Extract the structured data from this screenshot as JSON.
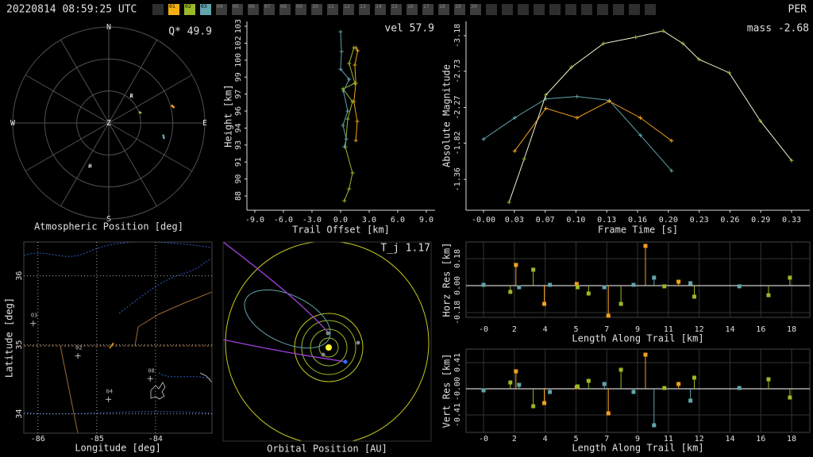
{
  "header": {
    "timestamp": "20220814 08:59:25 UTC",
    "code": "PER",
    "stations": [
      {
        "label": "01",
        "color": "#f5b010"
      },
      {
        "label": "02",
        "color": "#9ab828"
      },
      {
        "label": "03",
        "color": "#62a4ac"
      },
      {
        "label": "04"
      },
      {
        "label": "05"
      },
      {
        "label": "06"
      },
      {
        "label": "07"
      },
      {
        "label": "08"
      },
      {
        "label": "09"
      },
      {
        "label": "10"
      },
      {
        "label": "11"
      },
      {
        "label": "12"
      },
      {
        "label": "13"
      },
      {
        "label": "14"
      },
      {
        "label": "15"
      },
      {
        "label": "16"
      },
      {
        "label": "17"
      },
      {
        "label": "18"
      },
      {
        "label": "19"
      },
      {
        "label": "20"
      }
    ]
  },
  "chart_data": [
    {
      "type": "polar",
      "title": "Atmospheric Position [deg]",
      "annotation": "Q* 49.9",
      "directions": [
        "N",
        "E",
        "S",
        "W"
      ],
      "zenith_label": "Z",
      "rlim": [
        0,
        90
      ],
      "series": [
        {
          "color": "#f0a020",
          "azimuth": [
            74,
            77
          ],
          "zenith": [
            61,
            63
          ]
        },
        {
          "color": "#9ab828",
          "azimuth": [
            70,
            73
          ],
          "zenith": [
            30,
            32
          ]
        },
        {
          "color": "#62a4ac",
          "azimuth": [
            102,
            106
          ],
          "zenith": [
            52,
            54
          ]
        }
      ],
      "markers": [
        {
          "label": "R",
          "azimuth": 40,
          "zenith": 32
        },
        {
          "label": "H",
          "azimuth": 204,
          "zenith": 45
        }
      ]
    },
    {
      "type": "line",
      "xlabel": "Trail Offset [km]",
      "ylabel": "Height [km]",
      "annotation": "vel 57.9",
      "xlim": [
        -9.83,
        9.92
      ],
      "ylim": [
        86.72,
        103.63
      ],
      "xticks": [
        {
          "value": -9,
          "label": "-9.0"
        },
        {
          "value": -6,
          "label": "-6.0"
        },
        {
          "value": -3,
          "label": "-3.0"
        },
        {
          "value": 0,
          "label": "0.0"
        },
        {
          "value": 3,
          "label": "3.0"
        },
        {
          "value": 6,
          "label": "6.0"
        },
        {
          "value": 9,
          "label": "9.0"
        }
      ],
      "yticks": [
        88,
        {
          "value": 89.52,
          "label": "90"
        },
        {
          "value": 91.04,
          "label": "91"
        },
        {
          "value": 92.56,
          "label": "93"
        },
        {
          "value": 94.08,
          "label": "94"
        },
        {
          "value": 95.6,
          "label": "96"
        },
        {
          "value": 97.12,
          "label": "97"
        },
        {
          "value": 98.64,
          "label": "99"
        },
        {
          "value": 100.16,
          "label": "100"
        },
        {
          "value": 101.68,
          "label": "102"
        },
        {
          "value": 103.2,
          "label": "103"
        }
      ],
      "series": [
        {
          "color": "#f0a020",
          "marker": "+",
          "x": [
            1.6,
            1.8,
            1.5,
            1.6,
            1.4,
            1.75,
            1.6
          ],
          "y": [
            101.28,
            101.0,
            99.72,
            98.09,
            96.45,
            94.68,
            92.97
          ]
        },
        {
          "color": "#9ab828",
          "marker": "+",
          "x": [
            1.4,
            0.9,
            1.5,
            0.25,
            1.25,
            0.75,
            0.5,
            1.25,
            0.9,
            0.4
          ],
          "y": [
            101.28,
            99.86,
            98.09,
            97.59,
            96.45,
            94.89,
            92.4,
            90.06,
            88.64,
            87.57
          ]
        },
        {
          "color": "#62a4ac",
          "marker": "+",
          "x": [
            0,
            0.1,
            0,
            0.9,
            0.3,
            0.75,
            0.25,
            0.6,
            0.4
          ],
          "y": [
            102.7,
            100.93,
            99.36,
            98.44,
            97.38,
            95.6,
            94.32,
            93.11,
            92.4
          ]
        }
      ]
    },
    {
      "type": "line",
      "xlabel": "Frame Time [s]",
      "ylabel": "Absolute Magnitude",
      "annotation": "mass -2.68",
      "xlim": [
        -0.0185,
        0.3453
      ],
      "ylim": [
        -0.97,
        -3.36
      ],
      "xticks": [
        {
          "value": 0,
          "label": "-0.00"
        },
        {
          "value": 0.0326,
          "label": "0.03"
        },
        {
          "value": 0.0652,
          "label": "0.07"
        },
        {
          "value": 0.0978,
          "label": "0.10"
        },
        {
          "value": 0.1304,
          "label": "0.13"
        },
        {
          "value": 0.163,
          "label": "0.16"
        },
        {
          "value": 0.1956,
          "label": "0.20"
        },
        {
          "value": 0.2282,
          "label": "0.23"
        },
        {
          "value": 0.2608,
          "label": "0.26"
        },
        {
          "value": 0.2934,
          "label": "0.29"
        },
        {
          "value": 0.326,
          "label": "0.33"
        }
      ],
      "yticks": [
        -3.18,
        -2.73,
        -2.27,
        -1.82,
        -1.36
      ],
      "series": [
        {
          "color": "#62a4ac",
          "marker": "+",
          "x": [
            0,
            0.033,
            0.066,
            0.099,
            0.133,
            0.166,
            0.199
          ],
          "y": [
            -1.87,
            -2.14,
            -2.38,
            -2.41,
            -2.36,
            -1.92,
            -1.47
          ]
        },
        {
          "color": "#f0a020",
          "marker": "+",
          "x": [
            0.033,
            0.066,
            0.099,
            0.133,
            0.166,
            0.199
          ],
          "y": [
            -1.72,
            -2.26,
            -2.14,
            -2.35,
            -2.14,
            -1.85
          ]
        },
        {
          "color": "#f4f4d0",
          "marker": "+",
          "marker_color": "#9ab828",
          "x": [
            0.027,
            0.043,
            0.066,
            0.093,
            0.127,
            0.161,
            0.19,
            0.211,
            0.228,
            0.26,
            0.293,
            0.326
          ],
          "y": [
            -1.07,
            -1.62,
            -2.43,
            -2.78,
            -3.08,
            -3.16,
            -3.24,
            -3.08,
            -2.88,
            -2.71,
            -2.1,
            -1.6
          ]
        }
      ]
    },
    {
      "type": "map",
      "xlabel": "Longitude [deg]",
      "ylabel": "Latitude [deg]",
      "grid": true,
      "xlim": [
        -86.24,
        -83.04
      ],
      "ylim": [
        33.72,
        36.49
      ],
      "xticks": [
        -86,
        -85,
        -84
      ],
      "yticks": [
        34,
        35,
        36
      ],
      "points": [
        {
          "label": "03",
          "lon": -86.08,
          "lat": 35.31
        },
        {
          "label": "02",
          "lon": -85.32,
          "lat": 34.84
        },
        {
          "label": "04",
          "lon": -84.8,
          "lat": 34.21
        },
        {
          "label": "08",
          "lon": -84.09,
          "lat": 34.51
        }
      ]
    },
    {
      "type": "orbit",
      "title": "Orbital Position [AU]",
      "annotation": "T_j 1.17"
    },
    {
      "type": "stem",
      "xlabel": "Length Along Trail [km]",
      "ylabel": "Horz Res [km]",
      "grid": true,
      "xlim": [
        -1.0,
        18.64
      ],
      "ylim": [
        -0.212,
        0.291
      ],
      "xticks": [
        {
          "value": 0,
          "label": "-0"
        },
        {
          "value": 1.76,
          "label": "2"
        },
        {
          "value": 3.52,
          "label": "4"
        },
        {
          "value": 5.28,
          "label": "5"
        },
        {
          "value": 7.04,
          "label": "7"
        },
        {
          "value": 8.8,
          "label": "9"
        },
        {
          "value": 10.56,
          "label": "11"
        },
        {
          "value": 12.32,
          "label": "12"
        },
        {
          "value": 14.08,
          "label": "14"
        },
        {
          "value": 15.84,
          "label": "16"
        },
        {
          "value": 17.6,
          "label": "18"
        }
      ],
      "yticks": [
        -0.18,
        {
          "value": 0,
          "label": "0.00"
        },
        0.18
      ],
      "series": [
        {
          "color": "#f0a020",
          "x": [
            1.85,
            3.47,
            5.32,
            7.13,
            9.25,
            11.14
          ],
          "y": [
            0.138,
            -0.122,
            0.011,
            -0.201,
            0.265,
            0.026
          ]
        },
        {
          "color": "#9ab828",
          "x": [
            1.53,
            2.84,
            5.37,
            6.0,
            7.85,
            10.33,
            12.04,
            16.28,
            17.5
          ],
          "y": [
            -0.042,
            0.106,
            -0.011,
            -0.053,
            -0.122,
            -0.005,
            -0.074,
            -0.064,
            0.053
          ]
        },
        {
          "color": "#62a4ac",
          "x": [
            0,
            2.03,
            3.79,
            6.9,
            8.57,
            9.74,
            11.82,
            14.61
          ],
          "y": [
            0.005,
            -0.011,
            0.005,
            -0.011,
            0.005,
            0.053,
            0.016,
            -0.005
          ]
        }
      ]
    },
    {
      "type": "stem",
      "xlabel": "Length Along Trail [km]",
      "ylabel": "Vert Res [km]",
      "grid": true,
      "xlim": [
        -1.0,
        18.64
      ],
      "ylim": [
        -0.683,
        0.621
      ],
      "xticks": [
        {
          "value": 0,
          "label": "-0"
        },
        {
          "value": 1.76,
          "label": "2"
        },
        {
          "value": 3.52,
          "label": "4"
        },
        {
          "value": 5.28,
          "label": "5"
        },
        {
          "value": 7.04,
          "label": "7"
        },
        {
          "value": 8.8,
          "label": "9"
        },
        {
          "value": 10.56,
          "label": "11"
        },
        {
          "value": 12.32,
          "label": "12"
        },
        {
          "value": 14.08,
          "label": "14"
        },
        {
          "value": 15.84,
          "label": "16"
        },
        {
          "value": 17.6,
          "label": "18"
        }
      ],
      "yticks": [
        -0.41,
        {
          "value": 0,
          "label": "-0.00"
        },
        0.41
      ],
      "series": [
        {
          "color": "#f0a020",
          "x": [
            1.85,
            3.47,
            5.32,
            7.13,
            9.25,
            11.14
          ],
          "y": [
            0.273,
            -0.224,
            0.025,
            -0.385,
            0.534,
            0.075
          ]
        },
        {
          "color": "#9ab828",
          "x": [
            1.53,
            2.84,
            5.37,
            6.0,
            7.85,
            10.33,
            12.04,
            16.28,
            17.5
          ],
          "y": [
            0.099,
            -0.273,
            0.037,
            0.124,
            0.298,
            0.012,
            0.174,
            0.149,
            -0.137
          ]
        },
        {
          "color": "#62a4ac",
          "x": [
            0,
            2.03,
            3.79,
            6.9,
            8.57,
            9.74,
            11.82,
            14.61
          ],
          "y": [
            -0.025,
            0.062,
            -0.05,
            0.075,
            -0.05,
            -0.571,
            -0.186,
            0.012
          ]
        }
      ]
    }
  ]
}
